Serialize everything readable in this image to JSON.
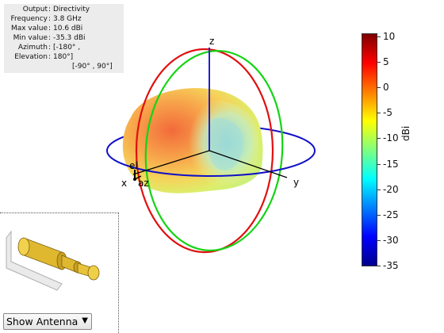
{
  "info": {
    "rows": [
      {
        "key": "Output",
        "value": "Directivity"
      },
      {
        "key": "Frequency",
        "value": "3.8 GHz"
      },
      {
        "key": "Max value",
        "value": "10.6 dBi"
      },
      {
        "key": "Min value",
        "value": "-35.3 dBi"
      },
      {
        "key": "Azimuth",
        "value": "[-180° ,"
      },
      {
        "key": "Elevation",
        "value": "180°]"
      }
    ],
    "extra": "[-90° , 90°]"
  },
  "axes": {
    "z": "z",
    "x": "x",
    "y": "y",
    "el": "el",
    "az": "az"
  },
  "colorbar": {
    "title": "dBi",
    "ticks": [
      "10",
      "5",
      "0",
      "-5",
      "-10",
      "-15",
      "-20",
      "-25",
      "-30",
      "-35"
    ],
    "colors": [
      "#7f0000",
      "#ff0000",
      "#ff7f00",
      "#ffff00",
      "#7fff7f",
      "#00ffff",
      "#007fff",
      "#0000ff",
      "#00008f"
    ]
  },
  "antenna_panel": {
    "dropdown_value": "Show Antenna"
  }
}
